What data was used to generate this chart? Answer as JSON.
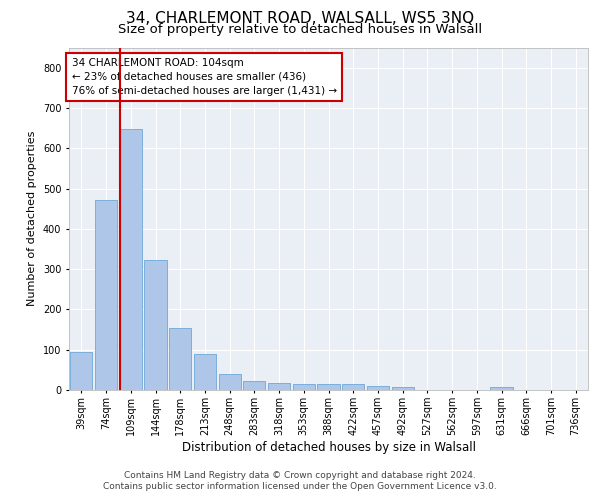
{
  "title1": "34, CHARLEMONT ROAD, WALSALL, WS5 3NQ",
  "title2": "Size of property relative to detached houses in Walsall",
  "xlabel": "Distribution of detached houses by size in Walsall",
  "ylabel": "Number of detached properties",
  "categories": [
    "39sqm",
    "74sqm",
    "109sqm",
    "144sqm",
    "178sqm",
    "213sqm",
    "248sqm",
    "283sqm",
    "318sqm",
    "353sqm",
    "388sqm",
    "422sqm",
    "457sqm",
    "492sqm",
    "527sqm",
    "562sqm",
    "597sqm",
    "631sqm",
    "666sqm",
    "701sqm",
    "736sqm"
  ],
  "values": [
    95,
    472,
    648,
    323,
    155,
    90,
    40,
    22,
    18,
    15,
    14,
    14,
    10,
    7,
    0,
    0,
    0,
    8,
    0,
    0,
    0
  ],
  "bar_color": "#aec6e8",
  "bar_edge_color": "#5a9fd4",
  "vline_color": "#cc0000",
  "annotation_text": "34 CHARLEMONT ROAD: 104sqm\n← 23% of detached houses are smaller (436)\n76% of semi-detached houses are larger (1,431) →",
  "annotation_box_color": "#ffffff",
  "annotation_box_edge_color": "#cc0000",
  "ylim": [
    0,
    850
  ],
  "yticks": [
    0,
    100,
    200,
    300,
    400,
    500,
    600,
    700,
    800
  ],
  "background_color": "#eaeef5",
  "footer1": "Contains HM Land Registry data © Crown copyright and database right 2024.",
  "footer2": "Contains public sector information licensed under the Open Government Licence v3.0.",
  "title1_fontsize": 11,
  "title2_fontsize": 9.5,
  "xlabel_fontsize": 8.5,
  "ylabel_fontsize": 8,
  "tick_fontsize": 7,
  "annotation_fontsize": 7.5,
  "footer_fontsize": 6.5
}
